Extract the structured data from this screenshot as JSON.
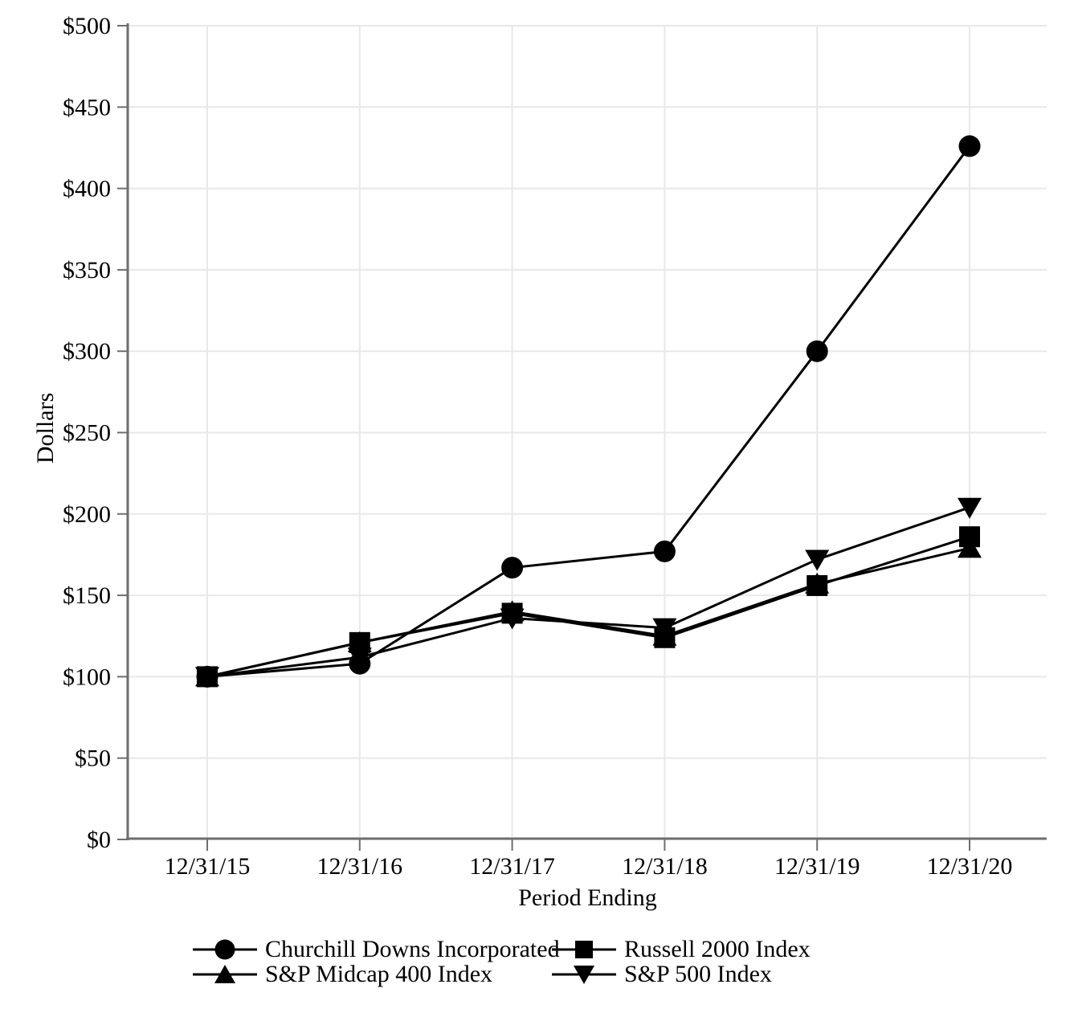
{
  "page": {
    "background": "#ffffff"
  },
  "chart_data": {
    "type": "line",
    "title": "",
    "xlabel": "Period Ending",
    "ylabel": "Dollars",
    "x_categories": [
      "12/31/15",
      "12/31/16",
      "12/31/17",
      "12/31/18",
      "12/31/19",
      "12/31/20"
    ],
    "y_ticks": [
      0,
      50,
      100,
      150,
      200,
      250,
      300,
      350,
      400,
      450,
      500
    ],
    "y_tick_labels": [
      "$0",
      "$50",
      "$100",
      "$150",
      "$200",
      "$250",
      "$300",
      "$350",
      "$400",
      "$450",
      "$500"
    ],
    "ylim": [
      0,
      500
    ],
    "grid": true,
    "legend_position": "bottom",
    "series": [
      {
        "name": "Churchill Downs Incorporated",
        "marker": "circle",
        "color": "#000000",
        "values": [
          100,
          108,
          167,
          177,
          300,
          426
        ]
      },
      {
        "name": "Russell 2000 Index",
        "marker": "square",
        "color": "#000000",
        "values": [
          100,
          121,
          139,
          124,
          156,
          186
        ]
      },
      {
        "name": "S&P Midcap 400 Index",
        "marker": "triangle-up",
        "color": "#000000",
        "values": [
          100,
          121,
          140,
          125,
          157,
          179
        ]
      },
      {
        "name": "S&P 500 Index",
        "marker": "triangle-down",
        "color": "#000000",
        "values": [
          100,
          112,
          136,
          130,
          172,
          204
        ]
      }
    ],
    "colors": {
      "grid": "#e8e8e8",
      "axis": "#6e6e6e",
      "text": "#000000",
      "series": "#000000"
    }
  }
}
